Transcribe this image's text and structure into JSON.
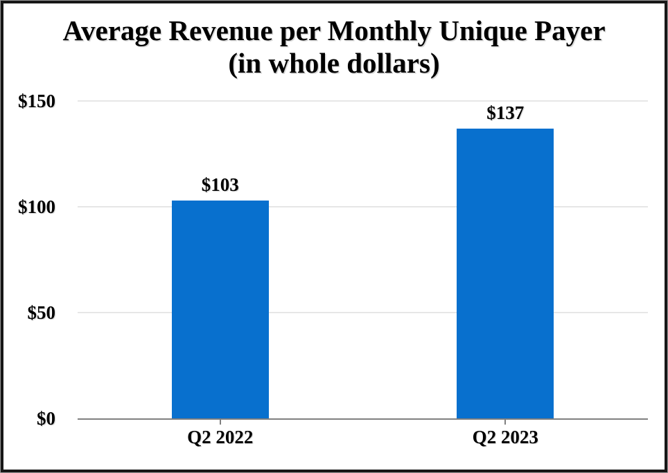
{
  "chart_data": {
    "type": "bar",
    "title_line1": "Average Revenue per Monthly Unique Payer",
    "title_line2": "(in whole dollars)",
    "categories": [
      "Q2 2022",
      "Q2 2023"
    ],
    "values": [
      103,
      137
    ],
    "value_labels": [
      "$103",
      "$137"
    ],
    "y_tick_values": [
      0,
      50,
      100,
      150
    ],
    "y_tick_labels": [
      "$0",
      "$50",
      "$100",
      "$150"
    ],
    "ylim": [
      0,
      150
    ],
    "xlabel": "",
    "ylabel": "",
    "legend_position": "none",
    "grid": "horizontal",
    "bar_color": "#0870CE",
    "gridline_color": "#E6E6E6",
    "axis_color": "#7F7F7F",
    "text_color": "#000000"
  }
}
